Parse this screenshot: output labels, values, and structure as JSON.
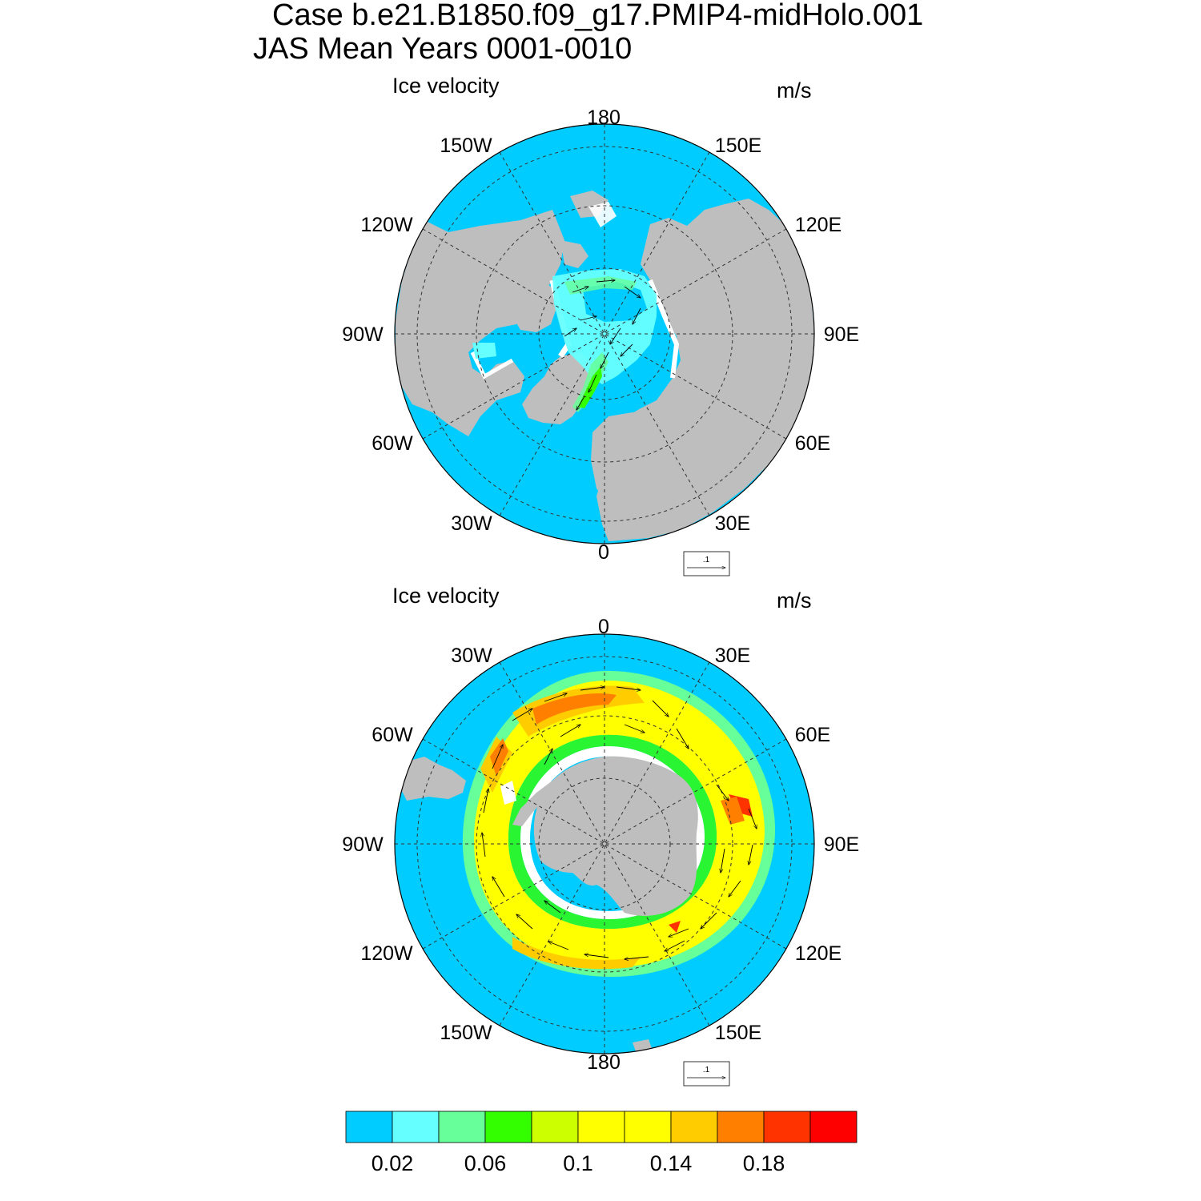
{
  "title": {
    "line1": "Case b.e21.B1850.f09_g17.PMIP4-midHolo.001",
    "line2": "JAS Mean   Years 0001-0010"
  },
  "panels": [
    {
      "id": "north",
      "title": "Ice velocity",
      "unit": "m/s",
      "lon_labels": [
        "180",
        "150E",
        "120E",
        "90E",
        "60E",
        "30E",
        "0",
        "30W",
        "60W",
        "90W",
        "120W",
        "150W"
      ],
      "ref_vector_label": ".1"
    },
    {
      "id": "south",
      "title": "Ice velocity",
      "unit": "m/s",
      "lon_labels": [
        "0",
        "30E",
        "60E",
        "90E",
        "120E",
        "150E",
        "180",
        "150W",
        "120W",
        "90W",
        "60W",
        "30W"
      ],
      "ref_vector_label": ".1"
    }
  ],
  "colorbar": {
    "colors": [
      "#00ccff",
      "#66ffff",
      "#66ff99",
      "#33ff00",
      "#ccff00",
      "#ffff00",
      "#ffff00",
      "#ffcc00",
      "#ff8000",
      "#ff3300",
      "#ff0000"
    ],
    "tick_labels": [
      "0.02",
      "0.06",
      "0.1",
      "0.14",
      "0.18"
    ],
    "tick_values": [
      0.02,
      0.06,
      0.1,
      0.14,
      0.18
    ]
  },
  "style": {
    "ocean": "#00ccff",
    "land": "#bebebe",
    "grid": "#333333"
  }
}
